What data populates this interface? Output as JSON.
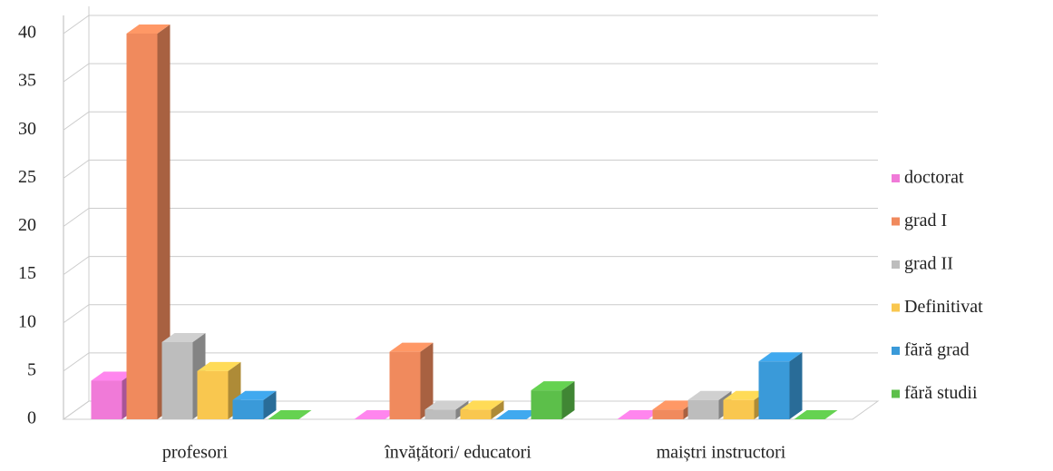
{
  "chart_data": {
    "type": "bar3d",
    "categories": [
      "profesori",
      "învățători/ educatori",
      "maiștri instructori"
    ],
    "series": [
      {
        "name": "doctorat",
        "color": "#f07ad8",
        "values": [
          4,
          0,
          0
        ]
      },
      {
        "name": "grad I",
        "color": "#f08a5d",
        "values": [
          40,
          7,
          1
        ]
      },
      {
        "name": "grad II",
        "color": "#bdbdbd",
        "values": [
          8,
          1,
          2
        ]
      },
      {
        "name": "Definitivat",
        "color": "#f9c74f",
        "values": [
          5,
          1,
          2
        ]
      },
      {
        "name": "fără grad",
        "color": "#3a9ad9",
        "values": [
          2,
          0,
          6
        ]
      },
      {
        "name": "fără studii",
        "color": "#5cbf4a",
        "values": [
          0,
          3,
          0
        ]
      }
    ],
    "ylim": [
      0,
      40
    ],
    "yticks": [
      0,
      5,
      10,
      15,
      20,
      25,
      30,
      35,
      40
    ],
    "grid": true,
    "legend": "right"
  }
}
